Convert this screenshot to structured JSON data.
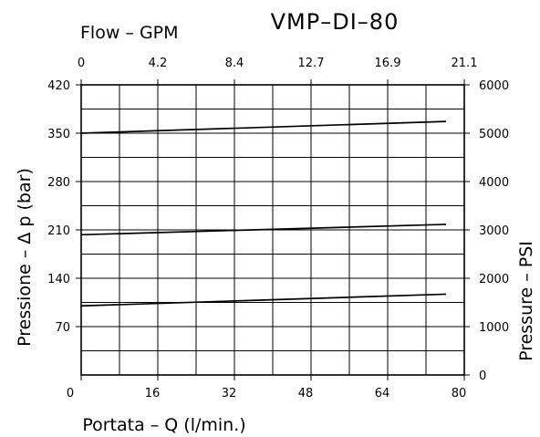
{
  "chart_data": {
    "type": "line",
    "title": "VMP–DI–80",
    "xlabel": "Portata – Q (l/min.)",
    "ylabel": "Pressione – Δ p (bar)",
    "x2label": "Flow – GPM",
    "y2label": "Pressure – PSI",
    "xlim": [
      0,
      84
    ],
    "ylim": [
      0,
      420
    ],
    "x_ticks": [
      "0",
      "16",
      "32",
      "48",
      "64",
      "80"
    ],
    "y_ticks": [
      "70",
      "140",
      "210",
      "280",
      "350",
      "420"
    ],
    "x2_ticks": [
      "0",
      "4.2",
      "8.4",
      "12.7",
      "16.9",
      "21.1"
    ],
    "y2_ticks": [
      "0",
      "1000",
      "2000",
      "3000",
      "4000",
      "5000",
      "6000"
    ],
    "grid": true,
    "series": [
      {
        "x": [
          0,
          80
        ],
        "y": [
          350,
          367
        ]
      },
      {
        "x": [
          0,
          80
        ],
        "y": [
          203,
          218
        ]
      },
      {
        "x": [
          0,
          80
        ],
        "y": [
          100,
          117
        ]
      }
    ]
  }
}
